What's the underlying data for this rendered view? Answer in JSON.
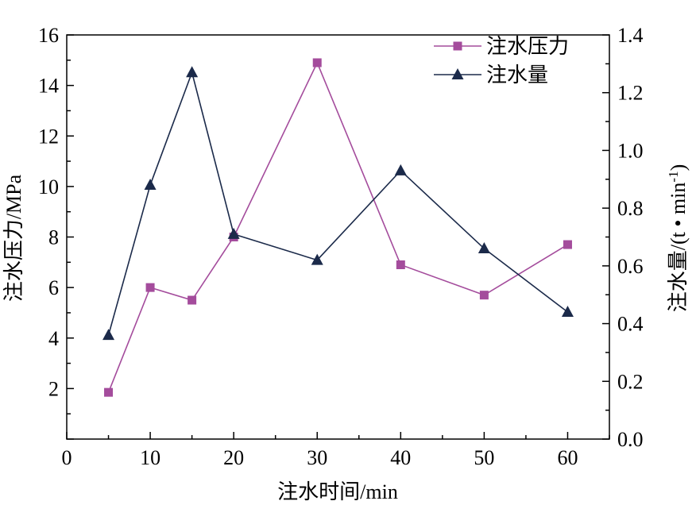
{
  "chart_data": {
    "type": "line",
    "xlabel": "注水时间/min",
    "ylabel_left": "注水压力/MPa",
    "ylabel_right": "注水量/(t • min",
    "ylabel_right_sup": "-1",
    "ylabel_right_close": ")",
    "x_ticks": [
      0,
      10,
      20,
      30,
      40,
      50,
      60
    ],
    "y_left_ticks": [
      2,
      4,
      6,
      8,
      10,
      12,
      14,
      16
    ],
    "y_right_ticks": [
      "0.0",
      "0.2",
      "0.4",
      "0.6",
      "0.8",
      "1.0",
      "1.2",
      "1.4"
    ],
    "xlim": [
      0,
      65
    ],
    "ylim_left": [
      0,
      16
    ],
    "ylim_right": [
      0,
      1.4
    ],
    "grid": false,
    "legend_position": "top-right",
    "series": [
      {
        "name": "注水压力",
        "axis": "left",
        "marker": "square",
        "color": "#A44C9C",
        "x": [
          5,
          10,
          15,
          20,
          30,
          40,
          50,
          60
        ],
        "values": [
          1.85,
          6.0,
          5.5,
          8.0,
          14.9,
          6.9,
          5.7,
          7.7
        ]
      },
      {
        "name": "注水量",
        "axis": "right",
        "marker": "triangle",
        "color": "#1B2A4A",
        "x": [
          5,
          10,
          15,
          20,
          30,
          40,
          50,
          60
        ],
        "values": [
          0.36,
          0.88,
          1.27,
          0.71,
          0.62,
          0.93,
          0.66,
          0.44
        ]
      }
    ]
  }
}
